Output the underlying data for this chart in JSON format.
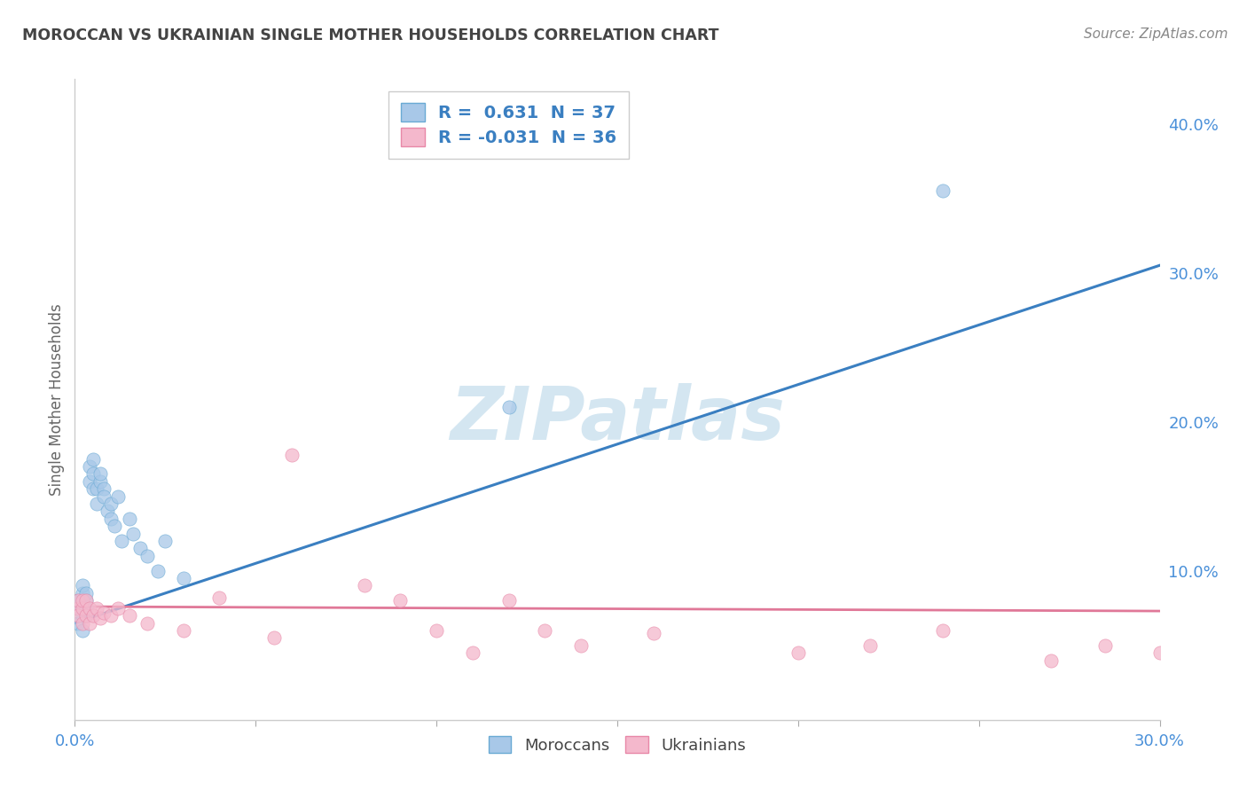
{
  "title": "MOROCCAN VS UKRAINIAN SINGLE MOTHER HOUSEHOLDS CORRELATION CHART",
  "source": "Source: ZipAtlas.com",
  "ylabel": "Single Mother Households",
  "xlim": [
    0.0,
    0.3
  ],
  "ylim": [
    0.0,
    0.43
  ],
  "xticks": [
    0.0,
    0.05,
    0.1,
    0.15,
    0.2,
    0.25,
    0.3
  ],
  "xtick_labels": [
    "0.0%",
    "",
    "",
    "",
    "",
    "",
    "30.0%"
  ],
  "yticks_right": [
    0.0,
    0.1,
    0.2,
    0.3,
    0.4
  ],
  "ytick_labels_right": [
    "",
    "10.0%",
    "20.0%",
    "30.0%",
    "40.0%"
  ],
  "moroccan_fill_color": "#a8c8e8",
  "moroccan_edge_color": "#6aaad4",
  "ukrainian_fill_color": "#f4b8cc",
  "ukrainian_edge_color": "#e888a8",
  "moroccan_line_color": "#3a7fc1",
  "ukrainian_line_color": "#e07898",
  "axis_color": "#4a90d9",
  "legend_text_color": "#3a7fc1",
  "title_color": "#444444",
  "watermark": "ZIPatlas",
  "watermark_color": "#d0e4f0",
  "R_moroccan": 0.631,
  "N_moroccan": 37,
  "R_ukrainian": -0.031,
  "N_ukrainian": 36,
  "moroccan_x": [
    0.001,
    0.001,
    0.001,
    0.002,
    0.002,
    0.002,
    0.002,
    0.003,
    0.003,
    0.003,
    0.003,
    0.004,
    0.004,
    0.005,
    0.005,
    0.005,
    0.006,
    0.006,
    0.007,
    0.007,
    0.008,
    0.008,
    0.009,
    0.01,
    0.01,
    0.011,
    0.012,
    0.013,
    0.015,
    0.016,
    0.018,
    0.02,
    0.023,
    0.025,
    0.03,
    0.12,
    0.24
  ],
  "moroccan_y": [
    0.075,
    0.08,
    0.065,
    0.085,
    0.09,
    0.07,
    0.06,
    0.08,
    0.085,
    0.075,
    0.07,
    0.16,
    0.17,
    0.175,
    0.155,
    0.165,
    0.145,
    0.155,
    0.16,
    0.165,
    0.155,
    0.15,
    0.14,
    0.145,
    0.135,
    0.13,
    0.15,
    0.12,
    0.135,
    0.125,
    0.115,
    0.11,
    0.1,
    0.12,
    0.095,
    0.21,
    0.355
  ],
  "ukrainian_x": [
    0.001,
    0.001,
    0.001,
    0.002,
    0.002,
    0.002,
    0.003,
    0.003,
    0.004,
    0.004,
    0.005,
    0.006,
    0.007,
    0.008,
    0.01,
    0.012,
    0.015,
    0.02,
    0.03,
    0.04,
    0.055,
    0.06,
    0.08,
    0.09,
    0.1,
    0.11,
    0.12,
    0.13,
    0.14,
    0.16,
    0.2,
    0.22,
    0.24,
    0.27,
    0.285,
    0.3
  ],
  "ukrainian_y": [
    0.075,
    0.08,
    0.07,
    0.065,
    0.075,
    0.08,
    0.07,
    0.08,
    0.065,
    0.075,
    0.07,
    0.075,
    0.068,
    0.072,
    0.07,
    0.075,
    0.07,
    0.065,
    0.06,
    0.082,
    0.055,
    0.178,
    0.09,
    0.08,
    0.06,
    0.045,
    0.08,
    0.06,
    0.05,
    0.058,
    0.045,
    0.05,
    0.06,
    0.04,
    0.05,
    0.045
  ]
}
